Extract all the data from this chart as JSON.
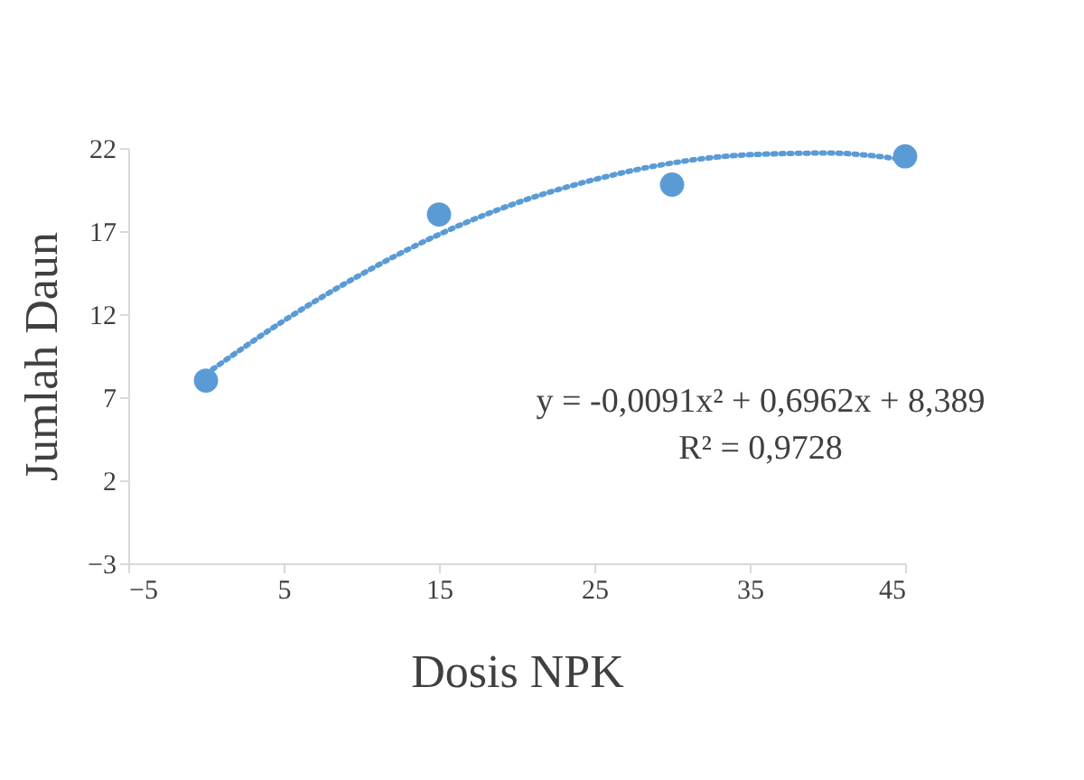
{
  "chart_data": {
    "type": "scatter",
    "xlabel": "Dosis NPK",
    "ylabel": "Jumlah Daun",
    "xlim": [
      -5,
      45
    ],
    "xticks": [
      -5,
      5,
      15,
      25,
      35,
      45
    ],
    "ylim": [
      -3,
      22
    ],
    "yticks": [
      -3,
      2,
      7,
      12,
      17,
      22
    ],
    "grid": false,
    "marker": "circle",
    "series": [
      {
        "type": "scatter",
        "color": "#5b9bd5",
        "x": [
          0,
          15,
          30,
          45
        ],
        "values": [
          8,
          18,
          19.8,
          21.5
        ]
      },
      {
        "type": "line",
        "color": "#5b9bd5",
        "line_style": "dotted",
        "marker": "none",
        "x": [
          0,
          5,
          10,
          15,
          20,
          25,
          30,
          35,
          40,
          45
        ],
        "values": [
          8.4,
          11.6,
          14.4,
          16.8,
          18.7,
          20.1,
          21.1,
          21.6,
          21.7,
          21.3
        ]
      }
    ],
    "annotations": [
      "y = -0,0091x² + 0,6962x + 8,389",
      "R² = 0,9728"
    ]
  }
}
